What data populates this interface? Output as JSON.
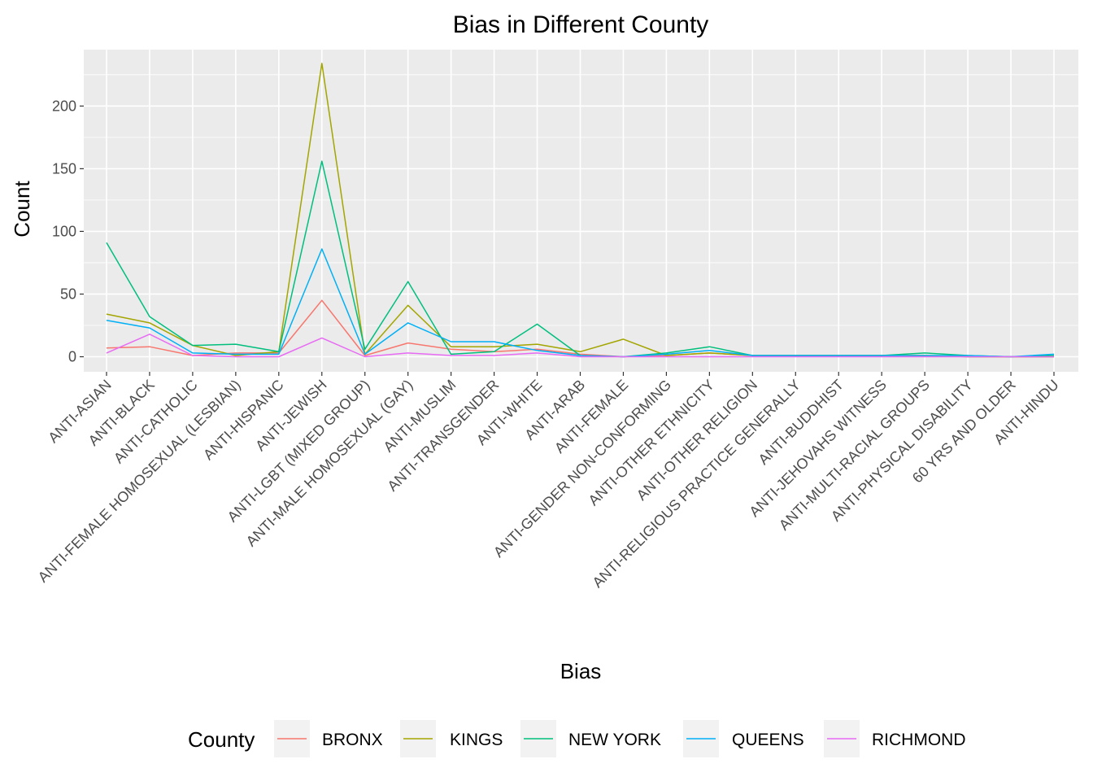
{
  "chart_data": {
    "type": "line",
    "title": "Bias in Different County",
    "xlabel": "Bias",
    "ylabel": "Count",
    "ylim": [
      -12,
      245
    ],
    "yticks": [
      0,
      50,
      100,
      150,
      200
    ],
    "grid": true,
    "legend": {
      "title": "County",
      "position": "bottom"
    },
    "categories": [
      "ANTI-ASIAN",
      "ANTI-BLACK",
      "ANTI-CATHOLIC",
      "ANTI-FEMALE HOMOSEXUAL (LESBIAN)",
      "ANTI-HISPANIC",
      "ANTI-JEWISH",
      "ANTI-LGBT (MIXED GROUP)",
      "ANTI-MALE HOMOSEXUAL (GAY)",
      "ANTI-MUSLIM",
      "ANTI-TRANSGENDER",
      "ANTI-WHITE",
      "ANTI-ARAB",
      "ANTI-FEMALE",
      "ANTI-GENDER NON-CONFORMING",
      "ANTI-OTHER ETHNICITY",
      "ANTI-OTHER RELIGION",
      "ANTI-RELIGIOUS PRACTICE GENERALLY",
      "ANTI-BUDDHIST",
      "ANTI-JEHOVAHS WITNESS",
      "ANTI-MULTI-RACIAL GROUPS",
      "ANTI-PHYSICAL DISABILITY",
      "60 YRS AND OLDER",
      "ANTI-HINDU"
    ],
    "series": [
      {
        "name": "BRONX",
        "color": "#F8766D",
        "values": [
          7,
          8,
          1,
          3,
          3,
          45,
          1,
          11,
          6,
          4,
          6,
          2,
          0,
          1,
          3,
          1,
          1,
          1,
          1,
          1,
          0,
          0,
          0
        ]
      },
      {
        "name": "KINGS",
        "color": "#A3A500",
        "values": [
          34,
          27,
          9,
          1,
          4,
          234,
          2,
          41,
          8,
          8,
          10,
          4,
          14,
          1,
          3,
          1,
          1,
          1,
          1,
          1,
          0,
          0,
          0
        ]
      },
      {
        "name": "NEW YORK",
        "color": "#00BF7D",
        "values": [
          91,
          32,
          9,
          10,
          4,
          156,
          6,
          60,
          2,
          4,
          26,
          1,
          0,
          3,
          8,
          1,
          1,
          1,
          1,
          3,
          1,
          0,
          1
        ]
      },
      {
        "name": "QUEENS",
        "color": "#00B0F6",
        "values": [
          29,
          23,
          3,
          2,
          2,
          86,
          2,
          27,
          12,
          12,
          5,
          1,
          0,
          2,
          5,
          1,
          1,
          1,
          1,
          1,
          1,
          0,
          2
        ]
      },
      {
        "name": "RICHMOND",
        "color": "#E76BF3",
        "values": [
          3,
          18,
          1,
          0,
          0,
          15,
          0,
          3,
          1,
          1,
          3,
          0,
          0,
          0,
          0,
          0,
          0,
          0,
          0,
          0,
          0,
          0,
          0
        ]
      }
    ]
  }
}
